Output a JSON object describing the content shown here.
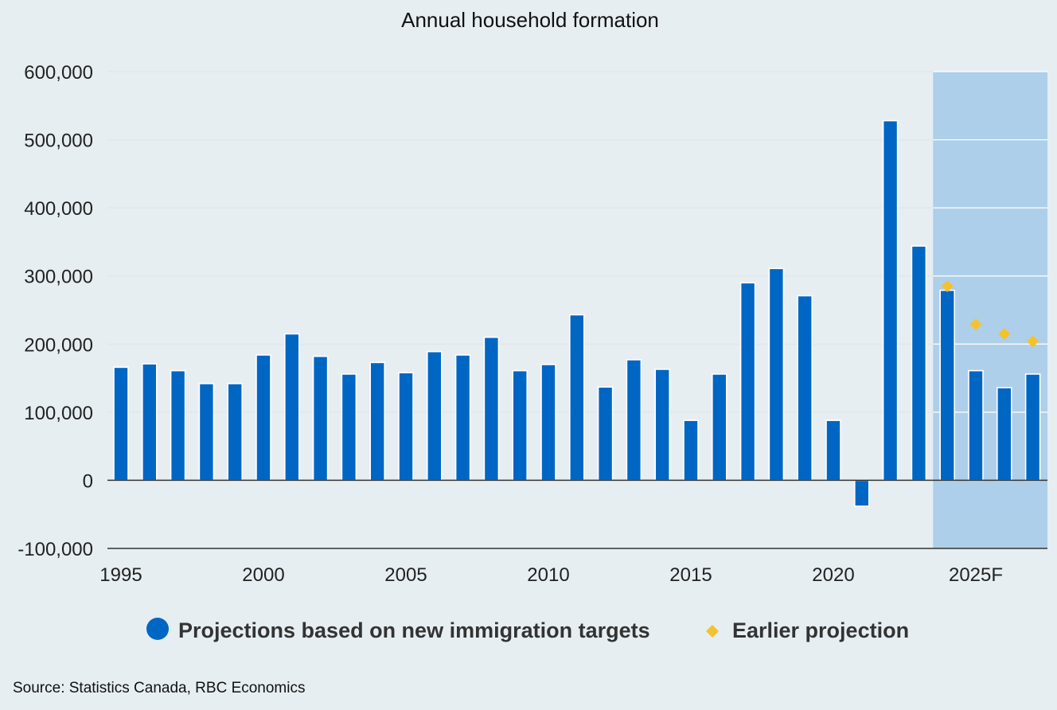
{
  "chart_data": {
    "type": "bar",
    "title": "Annual household formation",
    "xlabel": "",
    "ylabel": "",
    "ylim": [
      -100000,
      600000
    ],
    "y_ticks": [
      {
        "value": 600000,
        "label": "600,000"
      },
      {
        "value": 500000,
        "label": "500,000"
      },
      {
        "value": 400000,
        "label": "400,000"
      },
      {
        "value": 300000,
        "label": "300,000"
      },
      {
        "value": 200000,
        "label": "200,000"
      },
      {
        "value": 100000,
        "label": "100,000"
      },
      {
        "value": 0,
        "label": "0"
      },
      {
        "value": -100000,
        "label": "-100,000"
      }
    ],
    "categories": [
      "1995",
      "1996",
      "1997",
      "1998",
      "1999",
      "2000",
      "2001",
      "2002",
      "2003",
      "2004",
      "2005",
      "2006",
      "2007",
      "2008",
      "2009",
      "2010",
      "2011",
      "2012",
      "2013",
      "2014",
      "2015",
      "2016",
      "2017",
      "2018",
      "2019",
      "2020",
      "2021",
      "2022",
      "2023",
      "2024F",
      "2025F",
      "2026F",
      "2027F"
    ],
    "x_tick_labels": [
      {
        "category": "1995",
        "label": "1995"
      },
      {
        "category": "2000",
        "label": "2000"
      },
      {
        "category": "2005",
        "label": "2005"
      },
      {
        "category": "2010",
        "label": "2010"
      },
      {
        "category": "2015",
        "label": "2015"
      },
      {
        "category": "2020",
        "label": "2020"
      },
      {
        "category": "2025F",
        "label": "2025F"
      }
    ],
    "forecast_shade_start": "2024F",
    "grid": true,
    "series": [
      {
        "name": "Projections based on new immigration targets",
        "type": "bar",
        "color": "#0066c4",
        "values": [
          166000,
          171000,
          161000,
          142000,
          142000,
          184000,
          215000,
          182000,
          156000,
          173000,
          158000,
          189000,
          184000,
          210000,
          161000,
          170000,
          243000,
          137000,
          177000,
          163000,
          88000,
          156000,
          290000,
          311000,
          271000,
          88000,
          -38000,
          528000,
          344000,
          279000,
          161000,
          136000,
          156000
        ]
      },
      {
        "name": "Earlier projection",
        "type": "scatter",
        "marker": "diamond",
        "color": "#f6c12e",
        "categories": [
          "2024F",
          "2025F",
          "2026F",
          "2027F"
        ],
        "values": [
          285000,
          229000,
          215000,
          204000
        ]
      }
    ],
    "legend_position": "bottom",
    "colors": {
      "background": "#e6eef2",
      "forecast_shade": "#aecfea",
      "gridline": "#dde4e9",
      "axis": "#333333"
    }
  },
  "source": "Source: Statistics Canada, RBC Economics"
}
